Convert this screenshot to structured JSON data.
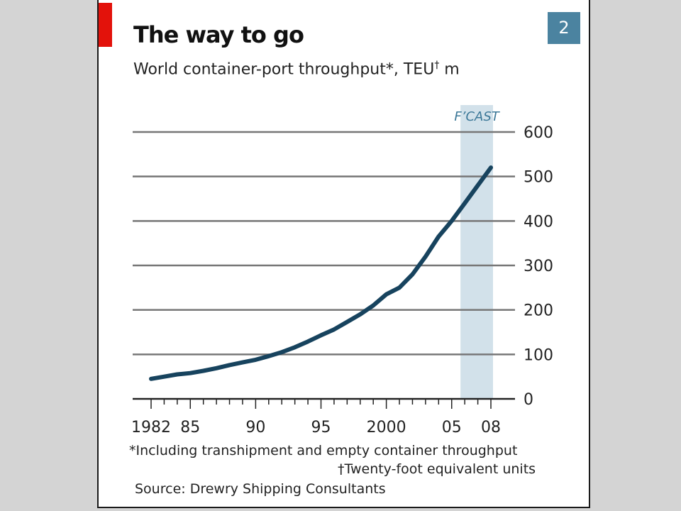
{
  "header": {
    "chart_number": "2",
    "title": "The way to go",
    "subtitle_main": "World container-port throughput*, TEU",
    "subtitle_dagger": "†",
    "subtitle_unit": " m"
  },
  "footnotes": {
    "note1": "*Including transhipment and empty container throughput",
    "note2": "†Twenty-foot equivalent units",
    "source": "Source: Drewry Shipping Consultants"
  },
  "colors": {
    "line": "#17435e",
    "forecast_band": "#d2e1ea",
    "forecast_label": "#3c7898",
    "gridline": "#777777",
    "red_tag": "#e3120b",
    "number_box": "#4b83a0"
  },
  "chart_data": {
    "type": "line",
    "title": "The way to go",
    "subtitle": "World container-port throughput*, TEU† m",
    "xlabel": "",
    "ylabel": "",
    "x_range": [
      1982,
      2008
    ],
    "ylim": [
      0,
      600
    ],
    "y_ticks": [
      "600",
      "500",
      "400",
      "300",
      "200",
      "100",
      "0"
    ],
    "y_tick_values": [
      600,
      500,
      400,
      300,
      200,
      100,
      0
    ],
    "y_axis_side": "right",
    "x_ticks": [
      {
        "label": "1982",
        "value": 1982
      },
      {
        "label": "85",
        "value": 1985
      },
      {
        "label": "90",
        "value": 1990
      },
      {
        "label": "95",
        "value": 1995
      },
      {
        "label": "2000",
        "value": 2000
      },
      {
        "label": "05",
        "value": 2005
      },
      {
        "label": "08",
        "value": 2008
      }
    ],
    "grid": true,
    "forecast": {
      "label": "F’CAST",
      "from": 2006,
      "to": 2008
    },
    "series": [
      {
        "x": [
          1982,
          1983,
          1984,
          1985,
          1986,
          1987,
          1988,
          1989,
          1990,
          1991,
          1992,
          1993,
          1994,
          1995,
          1996,
          1997,
          1998,
          1999,
          2000,
          2001,
          2002,
          2003,
          2004,
          2005,
          2006,
          2007,
          2008
        ],
        "values": [
          45,
          50,
          55,
          58,
          63,
          69,
          76,
          82,
          88,
          96,
          105,
          116,
          129,
          143,
          156,
          173,
          190,
          210,
          235,
          250,
          280,
          320,
          365,
          400,
          440,
          480,
          520
        ]
      }
    ]
  }
}
